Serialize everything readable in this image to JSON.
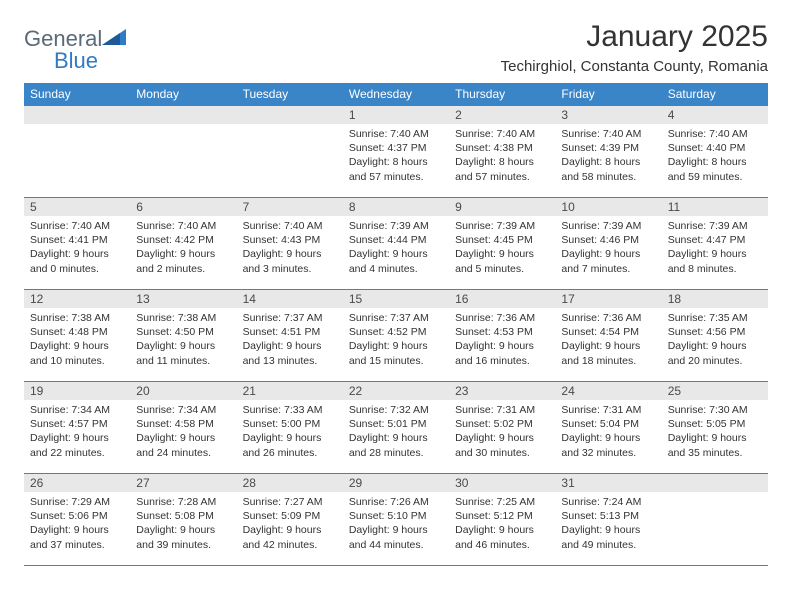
{
  "logo": {
    "text1": "General",
    "text2": "Blue"
  },
  "title": "January 2025",
  "location": "Techirghiol, Constanta County, Romania",
  "colors": {
    "header_bg": "#3a84c8",
    "header_text": "#ffffff",
    "daynum_bg": "#e8e8e8",
    "border": "#3a84c8",
    "body_text": "#333333",
    "logo_gray": "#5a6a78",
    "logo_blue": "#2f7bc4"
  },
  "day_names": [
    "Sunday",
    "Monday",
    "Tuesday",
    "Wednesday",
    "Thursday",
    "Friday",
    "Saturday"
  ],
  "weeks": [
    [
      {
        "n": "",
        "sr": "",
        "ss": "",
        "d1": "",
        "d2": ""
      },
      {
        "n": "",
        "sr": "",
        "ss": "",
        "d1": "",
        "d2": ""
      },
      {
        "n": "",
        "sr": "",
        "ss": "",
        "d1": "",
        "d2": ""
      },
      {
        "n": "1",
        "sr": "Sunrise: 7:40 AM",
        "ss": "Sunset: 4:37 PM",
        "d1": "Daylight: 8 hours",
        "d2": "and 57 minutes."
      },
      {
        "n": "2",
        "sr": "Sunrise: 7:40 AM",
        "ss": "Sunset: 4:38 PM",
        "d1": "Daylight: 8 hours",
        "d2": "and 57 minutes."
      },
      {
        "n": "3",
        "sr": "Sunrise: 7:40 AM",
        "ss": "Sunset: 4:39 PM",
        "d1": "Daylight: 8 hours",
        "d2": "and 58 minutes."
      },
      {
        "n": "4",
        "sr": "Sunrise: 7:40 AM",
        "ss": "Sunset: 4:40 PM",
        "d1": "Daylight: 8 hours",
        "d2": "and 59 minutes."
      }
    ],
    [
      {
        "n": "5",
        "sr": "Sunrise: 7:40 AM",
        "ss": "Sunset: 4:41 PM",
        "d1": "Daylight: 9 hours",
        "d2": "and 0 minutes."
      },
      {
        "n": "6",
        "sr": "Sunrise: 7:40 AM",
        "ss": "Sunset: 4:42 PM",
        "d1": "Daylight: 9 hours",
        "d2": "and 2 minutes."
      },
      {
        "n": "7",
        "sr": "Sunrise: 7:40 AM",
        "ss": "Sunset: 4:43 PM",
        "d1": "Daylight: 9 hours",
        "d2": "and 3 minutes."
      },
      {
        "n": "8",
        "sr": "Sunrise: 7:39 AM",
        "ss": "Sunset: 4:44 PM",
        "d1": "Daylight: 9 hours",
        "d2": "and 4 minutes."
      },
      {
        "n": "9",
        "sr": "Sunrise: 7:39 AM",
        "ss": "Sunset: 4:45 PM",
        "d1": "Daylight: 9 hours",
        "d2": "and 5 minutes."
      },
      {
        "n": "10",
        "sr": "Sunrise: 7:39 AM",
        "ss": "Sunset: 4:46 PM",
        "d1": "Daylight: 9 hours",
        "d2": "and 7 minutes."
      },
      {
        "n": "11",
        "sr": "Sunrise: 7:39 AM",
        "ss": "Sunset: 4:47 PM",
        "d1": "Daylight: 9 hours",
        "d2": "and 8 minutes."
      }
    ],
    [
      {
        "n": "12",
        "sr": "Sunrise: 7:38 AM",
        "ss": "Sunset: 4:48 PM",
        "d1": "Daylight: 9 hours",
        "d2": "and 10 minutes."
      },
      {
        "n": "13",
        "sr": "Sunrise: 7:38 AM",
        "ss": "Sunset: 4:50 PM",
        "d1": "Daylight: 9 hours",
        "d2": "and 11 minutes."
      },
      {
        "n": "14",
        "sr": "Sunrise: 7:37 AM",
        "ss": "Sunset: 4:51 PM",
        "d1": "Daylight: 9 hours",
        "d2": "and 13 minutes."
      },
      {
        "n": "15",
        "sr": "Sunrise: 7:37 AM",
        "ss": "Sunset: 4:52 PM",
        "d1": "Daylight: 9 hours",
        "d2": "and 15 minutes."
      },
      {
        "n": "16",
        "sr": "Sunrise: 7:36 AM",
        "ss": "Sunset: 4:53 PM",
        "d1": "Daylight: 9 hours",
        "d2": "and 16 minutes."
      },
      {
        "n": "17",
        "sr": "Sunrise: 7:36 AM",
        "ss": "Sunset: 4:54 PM",
        "d1": "Daylight: 9 hours",
        "d2": "and 18 minutes."
      },
      {
        "n": "18",
        "sr": "Sunrise: 7:35 AM",
        "ss": "Sunset: 4:56 PM",
        "d1": "Daylight: 9 hours",
        "d2": "and 20 minutes."
      }
    ],
    [
      {
        "n": "19",
        "sr": "Sunrise: 7:34 AM",
        "ss": "Sunset: 4:57 PM",
        "d1": "Daylight: 9 hours",
        "d2": "and 22 minutes."
      },
      {
        "n": "20",
        "sr": "Sunrise: 7:34 AM",
        "ss": "Sunset: 4:58 PM",
        "d1": "Daylight: 9 hours",
        "d2": "and 24 minutes."
      },
      {
        "n": "21",
        "sr": "Sunrise: 7:33 AM",
        "ss": "Sunset: 5:00 PM",
        "d1": "Daylight: 9 hours",
        "d2": "and 26 minutes."
      },
      {
        "n": "22",
        "sr": "Sunrise: 7:32 AM",
        "ss": "Sunset: 5:01 PM",
        "d1": "Daylight: 9 hours",
        "d2": "and 28 minutes."
      },
      {
        "n": "23",
        "sr": "Sunrise: 7:31 AM",
        "ss": "Sunset: 5:02 PM",
        "d1": "Daylight: 9 hours",
        "d2": "and 30 minutes."
      },
      {
        "n": "24",
        "sr": "Sunrise: 7:31 AM",
        "ss": "Sunset: 5:04 PM",
        "d1": "Daylight: 9 hours",
        "d2": "and 32 minutes."
      },
      {
        "n": "25",
        "sr": "Sunrise: 7:30 AM",
        "ss": "Sunset: 5:05 PM",
        "d1": "Daylight: 9 hours",
        "d2": "and 35 minutes."
      }
    ],
    [
      {
        "n": "26",
        "sr": "Sunrise: 7:29 AM",
        "ss": "Sunset: 5:06 PM",
        "d1": "Daylight: 9 hours",
        "d2": "and 37 minutes."
      },
      {
        "n": "27",
        "sr": "Sunrise: 7:28 AM",
        "ss": "Sunset: 5:08 PM",
        "d1": "Daylight: 9 hours",
        "d2": "and 39 minutes."
      },
      {
        "n": "28",
        "sr": "Sunrise: 7:27 AM",
        "ss": "Sunset: 5:09 PM",
        "d1": "Daylight: 9 hours",
        "d2": "and 42 minutes."
      },
      {
        "n": "29",
        "sr": "Sunrise: 7:26 AM",
        "ss": "Sunset: 5:10 PM",
        "d1": "Daylight: 9 hours",
        "d2": "and 44 minutes."
      },
      {
        "n": "30",
        "sr": "Sunrise: 7:25 AM",
        "ss": "Sunset: 5:12 PM",
        "d1": "Daylight: 9 hours",
        "d2": "and 46 minutes."
      },
      {
        "n": "31",
        "sr": "Sunrise: 7:24 AM",
        "ss": "Sunset: 5:13 PM",
        "d1": "Daylight: 9 hours",
        "d2": "and 49 minutes."
      },
      {
        "n": "",
        "sr": "",
        "ss": "",
        "d1": "",
        "d2": ""
      }
    ]
  ]
}
